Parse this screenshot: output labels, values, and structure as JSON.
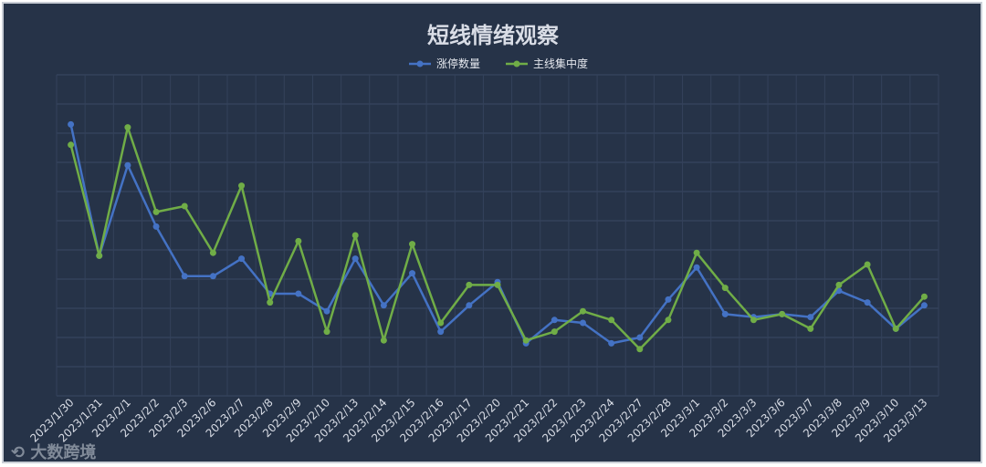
{
  "chart_data": {
    "type": "line",
    "title": "短线情绪观察",
    "categories": [
      "2023/1/30",
      "2023/1/31",
      "2023/2/1",
      "2023/2/2",
      "2023/2/3",
      "2023/2/6",
      "2023/2/7",
      "2023/2/8",
      "2023/2/9",
      "2023/2/10",
      "2023/2/13",
      "2023/2/14",
      "2023/2/15",
      "2023/2/16",
      "2023/2/17",
      "2023/2/20",
      "2023/2/21",
      "2023/2/22",
      "2023/2/23",
      "2023/2/24",
      "2023/2/27",
      "2023/2/28",
      "2023/3/1",
      "2023/3/2",
      "2023/3/3",
      "2023/3/6",
      "2023/3/7",
      "2023/3/8",
      "2023/3/9",
      "2023/3/10",
      "2023/3/13"
    ],
    "series": [
      {
        "name": "涨停数量",
        "color": "#4472c4",
        "values": [
          8.3,
          3.8,
          6.9,
          4.8,
          3.1,
          3.1,
          3.7,
          2.5,
          2.5,
          1.9,
          3.7,
          2.1,
          3.2,
          1.2,
          2.1,
          2.9,
          0.8,
          1.6,
          1.5,
          0.8,
          1.0,
          2.3,
          3.4,
          1.8,
          1.7,
          1.8,
          1.7,
          2.6,
          2.2,
          1.3,
          2.1
        ]
      },
      {
        "name": "主线集中度",
        "color": "#70ad47",
        "values": [
          7.6,
          3.8,
          8.2,
          5.3,
          5.5,
          3.9,
          6.2,
          2.2,
          4.3,
          1.2,
          4.5,
          0.9,
          4.2,
          1.5,
          2.8,
          2.8,
          0.9,
          1.2,
          1.9,
          1.6,
          0.6,
          1.6,
          3.9,
          2.7,
          1.6,
          1.8,
          1.3,
          2.8,
          3.5,
          1.3,
          2.4
        ]
      }
    ],
    "ylim": [
      -1,
      10
    ],
    "grid": true,
    "legend_position": "top-center",
    "xlabel": "",
    "ylabel": ""
  },
  "watermark": "大数跨境"
}
